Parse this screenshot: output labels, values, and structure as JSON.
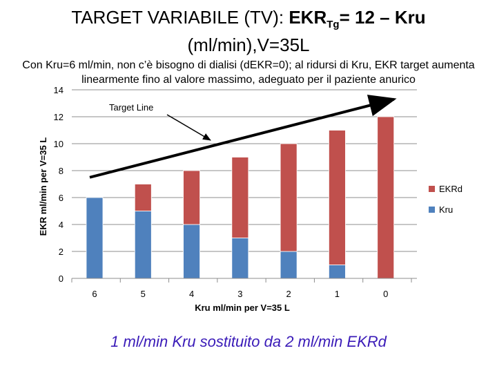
{
  "header": {
    "title_prefix": "TARGET VARIABILE (TV): ",
    "title_bold": "EKR",
    "title_sub": "Tg",
    "title_rest": "= 12 – Kru",
    "title_line2": "(ml/min),V=35L",
    "description": "Con Kru=6 ml/min, non c’è bisogno di dialisi (dEKR=0); al ridursi di Kru, EKR target aumenta linearmente fino al valore massimo, adeguato per il paziente anurico"
  },
  "chart_data": {
    "type": "bar",
    "stacked": true,
    "categories": [
      "6",
      "5",
      "4",
      "3",
      "2",
      "1",
      "0"
    ],
    "series": [
      {
        "name": "Kru",
        "values": [
          6,
          5,
          4,
          3,
          2,
          1,
          0
        ],
        "color": "#4f81bd"
      },
      {
        "name": "EKRd",
        "values": [
          0,
          2,
          4,
          6,
          8,
          10,
          12
        ],
        "color": "#c0504d"
      }
    ],
    "xlabel": "Kru ml/min per V=35 L",
    "ylabel": "EKR ml/min per V=35 L",
    "ylim": [
      0,
      14
    ],
    "yticks": [
      0,
      2,
      4,
      6,
      8,
      10,
      12,
      14
    ],
    "legend_position": "right",
    "annotations": [
      {
        "text": "Target Line"
      }
    ],
    "target_line": {
      "from": {
        "x": "6",
        "y": 7.5
      },
      "to": {
        "x": "0",
        "y": 13.3
      }
    }
  },
  "footer": {
    "caption": "1 ml/min Kru sostituito da 2 ml/min EKRd"
  }
}
